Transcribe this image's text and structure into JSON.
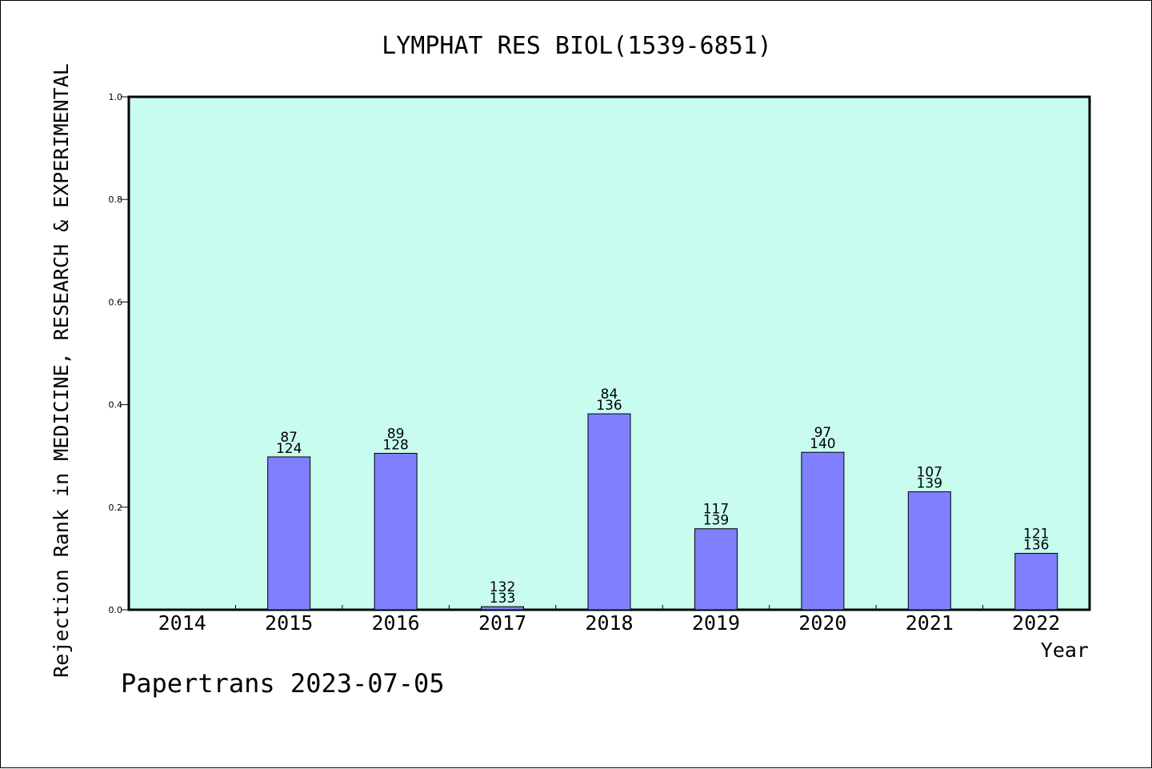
{
  "chart_data": {
    "type": "bar",
    "title": "LYMPHAT RES BIOL(1539-6851)",
    "ylabel": "Rejection Rank in MEDICINE, RESEARCH & EXPERIMENTAL",
    "xlabel": "Year",
    "footer": "Papertrans 2023-07-05",
    "categories": [
      "2014",
      "2015",
      "2016",
      "2017",
      "2018",
      "2019",
      "2020",
      "2021",
      "2022"
    ],
    "values": [
      null,
      0.298,
      0.305,
      0.006,
      0.382,
      0.158,
      0.307,
      0.23,
      0.11
    ],
    "labels_top": [
      "",
      "87",
      "89",
      "132",
      "84",
      "117",
      "97",
      "107",
      "121"
    ],
    "labels_bottom": [
      "",
      "124",
      "128",
      "133",
      "136",
      "139",
      "140",
      "139",
      "136"
    ],
    "ylim": [
      0,
      1.0
    ],
    "yticks": [
      "0.0",
      "0.2",
      "0.4",
      "0.6",
      "0.8",
      "1.0"
    ],
    "colors": {
      "plot_background": "#c8fcee",
      "bar_fill": "#8080ff",
      "bar_stroke": "#000000"
    },
    "grid": false
  }
}
